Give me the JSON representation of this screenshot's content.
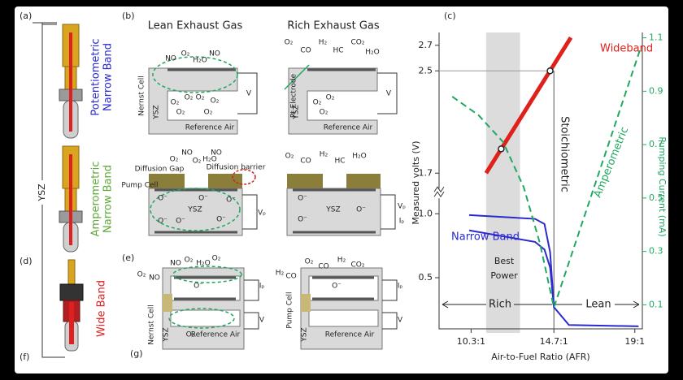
{
  "panel_labels": {
    "a": "(a)",
    "b": "(b)",
    "c": "(c)",
    "d": "(d)",
    "e": "(e)",
    "f": "(f)",
    "g": "(g)"
  },
  "sensors": {
    "ysz": "YSZ",
    "potentiometric": [
      "Potentiometric",
      "Narrow Band"
    ],
    "amperometric": [
      "Amperometric",
      "Narrow Band"
    ],
    "wide": [
      "Wide Band"
    ]
  },
  "diagrams": {
    "lean_title": "Lean Exhaust Gas",
    "rich_title": "Rich Exhaust Gas",
    "lean_top": [
      "NO",
      "O₂",
      "H₂O",
      "NO",
      "O₂",
      "O₂",
      "O₂",
      "O₂",
      "O₂",
      "O₂",
      "Nernst Cell",
      "YSZ",
      "Reference Air",
      "V"
    ],
    "rich_top": [
      "O₂",
      "CO",
      "H₂",
      "HC",
      "CO₂",
      "H₂O",
      "Pt Electrode",
      "YSZ",
      "Reference Air",
      "V",
      "O₂",
      "O₂",
      "O₂"
    ],
    "lean_mid": [
      "O₂",
      "NO",
      "O₂",
      "H₂O",
      "NO",
      "Diffusion Gap",
      "Diffusion barrier",
      "Pump Cell",
      "YSZ",
      "Vₚ",
      "O⁻",
      "O⁻",
      "O⁻",
      "O⁻",
      "O⁻",
      "O⁻"
    ],
    "rich_mid": [
      "O₂",
      "CO",
      "H₂",
      "HC",
      "H₂O",
      "YSZ",
      "Vₚ",
      "Iₚ",
      "O⁻",
      "O⁻",
      "O⁻"
    ],
    "lean_bot": [
      "NO",
      "O₂",
      "H₂O",
      "O₂",
      "O₂",
      "NO",
      "Iₚ",
      "V",
      "Nernst Cell",
      "YSZ",
      "O₂",
      "Reference Air",
      "O⁻"
    ],
    "rich_bot": [
      "H₂",
      "CO",
      "O₂",
      "CO",
      "H₂",
      "CO₂",
      "Iₚ",
      "V",
      "Pump Cell",
      "YSZ",
      "Reference Air",
      "O⁻"
    ]
  },
  "chart_data": {
    "type": "line",
    "xlabel": "Air-to-Fuel Ratio (AFR)",
    "ylabel": "Measured volts (V)",
    "y2label": "Pumping Current (mA)",
    "xlim": [
      8.6,
      19.4
    ],
    "xticks": [
      {
        "value": 10.3,
        "label": "10.3:1"
      },
      {
        "value": 14.7,
        "label": "14.7:1"
      },
      {
        "value": 19,
        "label": "19:1"
      }
    ],
    "ylim": [
      0.1,
      2.8
    ],
    "axis_break": [
      1.0,
      1.7
    ],
    "yticks": [
      0.5,
      {
        "value": 1.0,
        "label": "1.0"
      },
      1.7,
      2.5,
      2.7
    ],
    "y2lim": [
      0.01,
      1.12
    ],
    "y2ticks": [
      0.1,
      0.3,
      0.5,
      0.7,
      0.9,
      1.1
    ],
    "shade_x": [
      11.1,
      12.9
    ],
    "series": [
      {
        "name": "Wideband",
        "color": "#e0201b",
        "x": [
          11.1,
          15.6
        ],
        "values": [
          1.7,
          2.76
        ]
      },
      {
        "name": "Narrow Band",
        "color": "#2a2ad0",
        "x": [
          10.2,
          13.7,
          14.2,
          14.5,
          14.7,
          15.5,
          19.2
        ],
        "values": [
          0.99,
          0.96,
          0.92,
          0.7,
          0.27,
          0.13,
          0.12
        ]
      },
      {
        "color": "#2a2ad0",
        "x": [
          10.2,
          13.7,
          14.2,
          14.5,
          14.7
        ],
        "values": [
          0.87,
          0.78,
          0.72,
          0.58,
          0.27
        ]
      },
      {
        "name": "Amperometric",
        "color": "#1fa860",
        "axis": "y2",
        "dashed": true,
        "x": [
          9.3,
          10.7,
          12.0,
          13.1,
          13.96,
          14.7,
          19.3
        ],
        "values": [
          0.88,
          0.81,
          0.71,
          0.54,
          0.33,
          0.09,
          1.06
        ]
      }
    ],
    "markers": [
      {
        "x": 11.9,
        "y": 1.89
      },
      {
        "x": 14.5,
        "y": 2.5
      }
    ],
    "annotations": {
      "rich": "Rich",
      "lean": "Lean",
      "best_power": [
        "Best",
        "Power"
      ],
      "stoichiometric": "Stoichiometric"
    }
  }
}
